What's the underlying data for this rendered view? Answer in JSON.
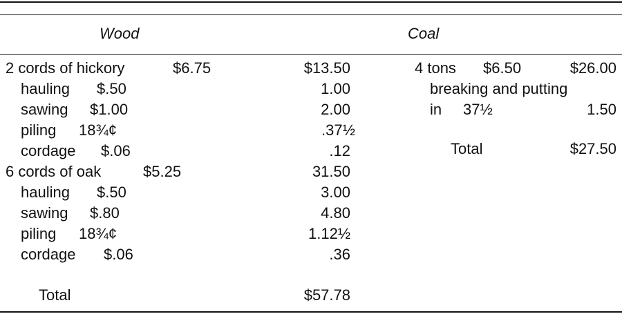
{
  "headers": {
    "wood": "Wood",
    "coal": "Coal"
  },
  "wood": {
    "rows": [
      {
        "label": "2 cords of hickory",
        "rate": "$6.75",
        "amount": "$13.50"
      },
      {
        "label": "hauling",
        "rate": "$.50",
        "amount": "1.00"
      },
      {
        "label": "sawing",
        "rate": "$1.00",
        "amount": "2.00"
      },
      {
        "label": "piling",
        "rate": "18¾¢",
        "amount": ".37½"
      },
      {
        "label": "cordage",
        "rate": "$.06",
        "amount": ".12"
      },
      {
        "label": "6 cords of oak",
        "rate": "$5.25",
        "amount": "31.50"
      },
      {
        "label": "hauling",
        "rate": "$.50",
        "amount": "3.00"
      },
      {
        "label": "sawing",
        "rate": "$.80",
        "amount": "4.80"
      },
      {
        "label": "piling",
        "rate": "18¾¢",
        "amount": "1.12½"
      },
      {
        "label": "cordage",
        "rate": "$.06",
        "amount": ".36"
      }
    ],
    "total_label": "Total",
    "total": "$57.78"
  },
  "coal": {
    "row1": {
      "label": "4 tons",
      "rate": "$6.50",
      "amount": "$26.00"
    },
    "row2_label": "breaking and putting",
    "row3": {
      "label": "in",
      "rate": "37½",
      "amount": "1.50"
    },
    "total_label": "Total",
    "total": "$27.50"
  }
}
